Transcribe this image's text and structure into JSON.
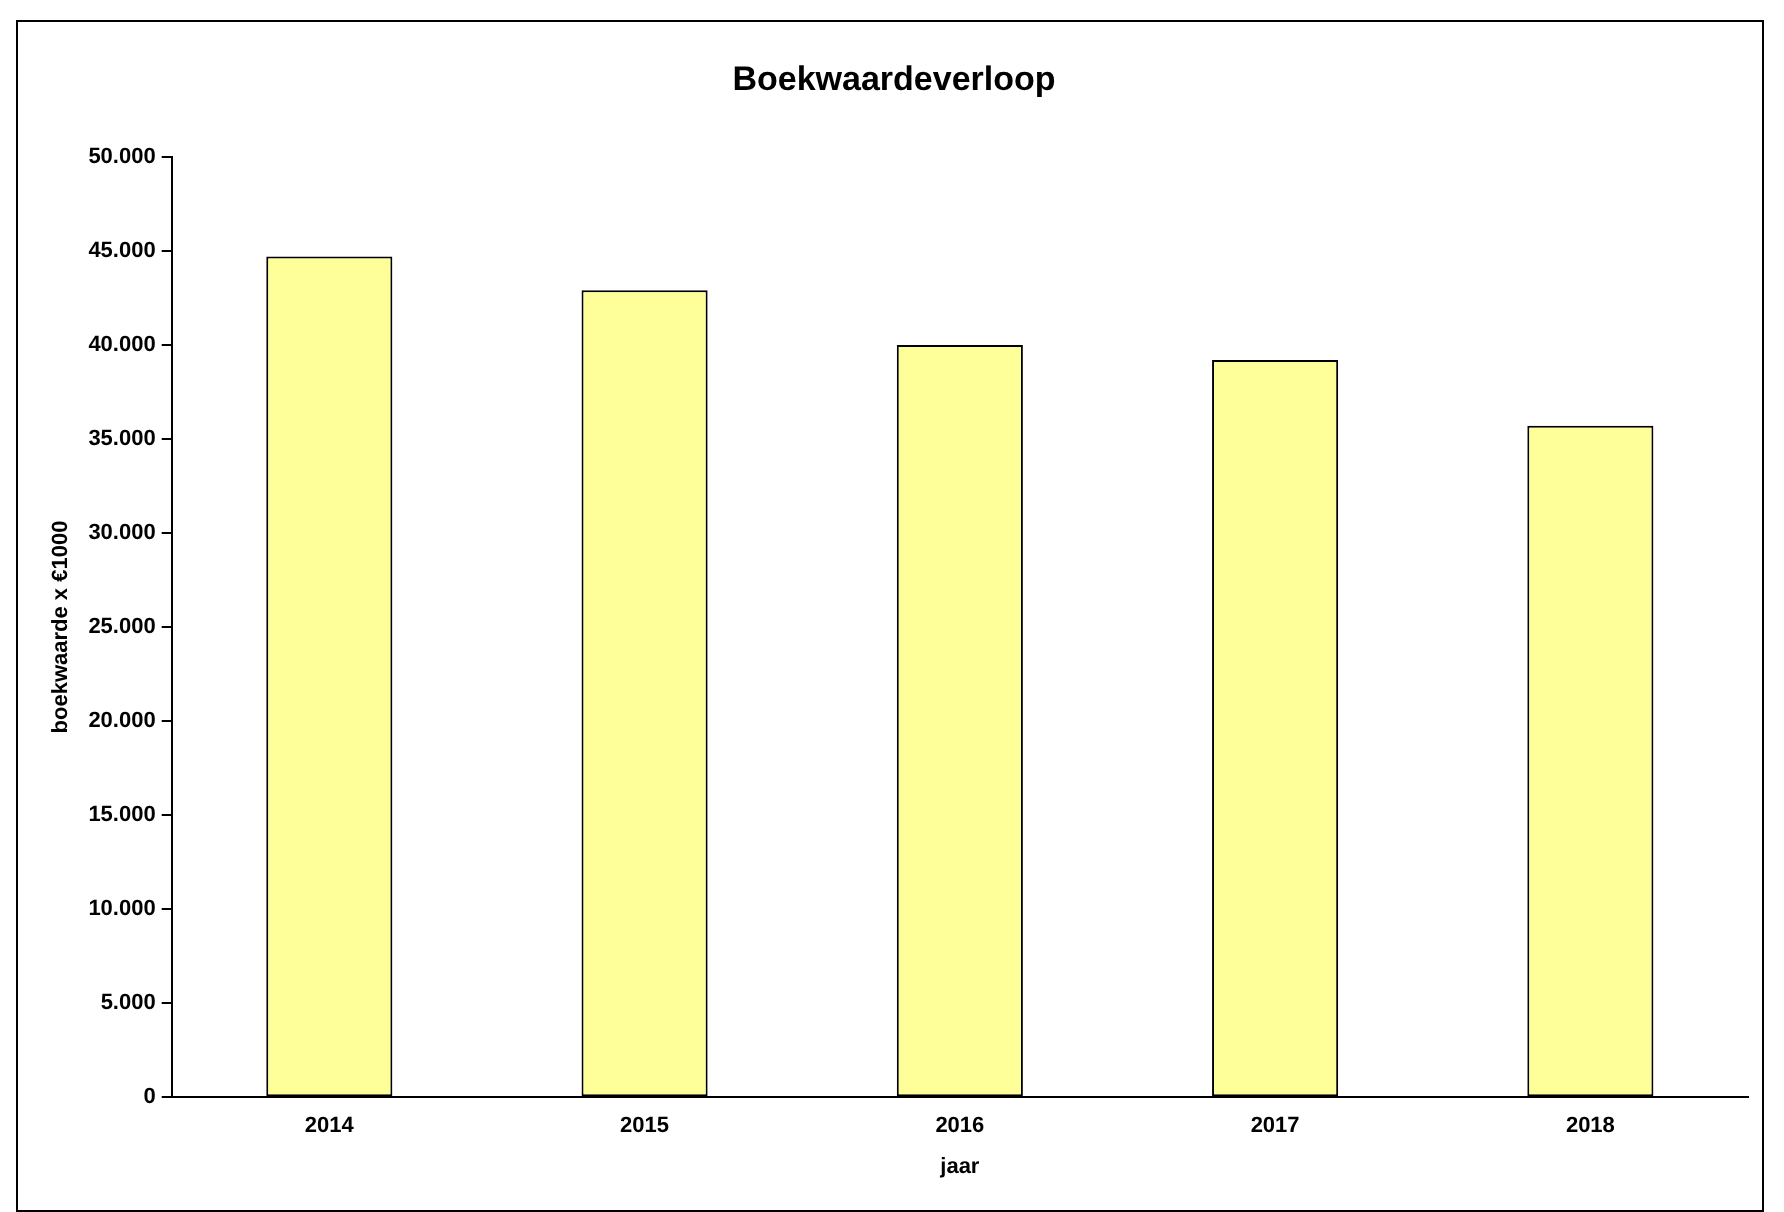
{
  "chart_data": {
    "type": "bar",
    "title": "Boekwaardeverloop",
    "xlabel": "jaar",
    "ylabel": "boekwaarde x €1000",
    "categories": [
      "2014",
      "2015",
      "2016",
      "2017",
      "2018"
    ],
    "values": [
      44700,
      42900,
      40000,
      39200,
      35700
    ],
    "color": "#ffff99",
    "ylim": [
      0,
      50000
    ],
    "yticks": [
      {
        "value": 0,
        "label": "0"
      },
      {
        "value": 5000,
        "label": "5.000"
      },
      {
        "value": 10000,
        "label": "10.000"
      },
      {
        "value": 15000,
        "label": "15.000"
      },
      {
        "value": 20000,
        "label": "20.000"
      },
      {
        "value": 25000,
        "label": "25.000"
      },
      {
        "value": 30000,
        "label": "30.000"
      },
      {
        "value": 35000,
        "label": "35.000"
      },
      {
        "value": 40000,
        "label": "40.000"
      },
      {
        "value": 45000,
        "label": "45.000"
      },
      {
        "value": 50000,
        "label": "50.000"
      }
    ],
    "grid": false,
    "legend": false
  }
}
